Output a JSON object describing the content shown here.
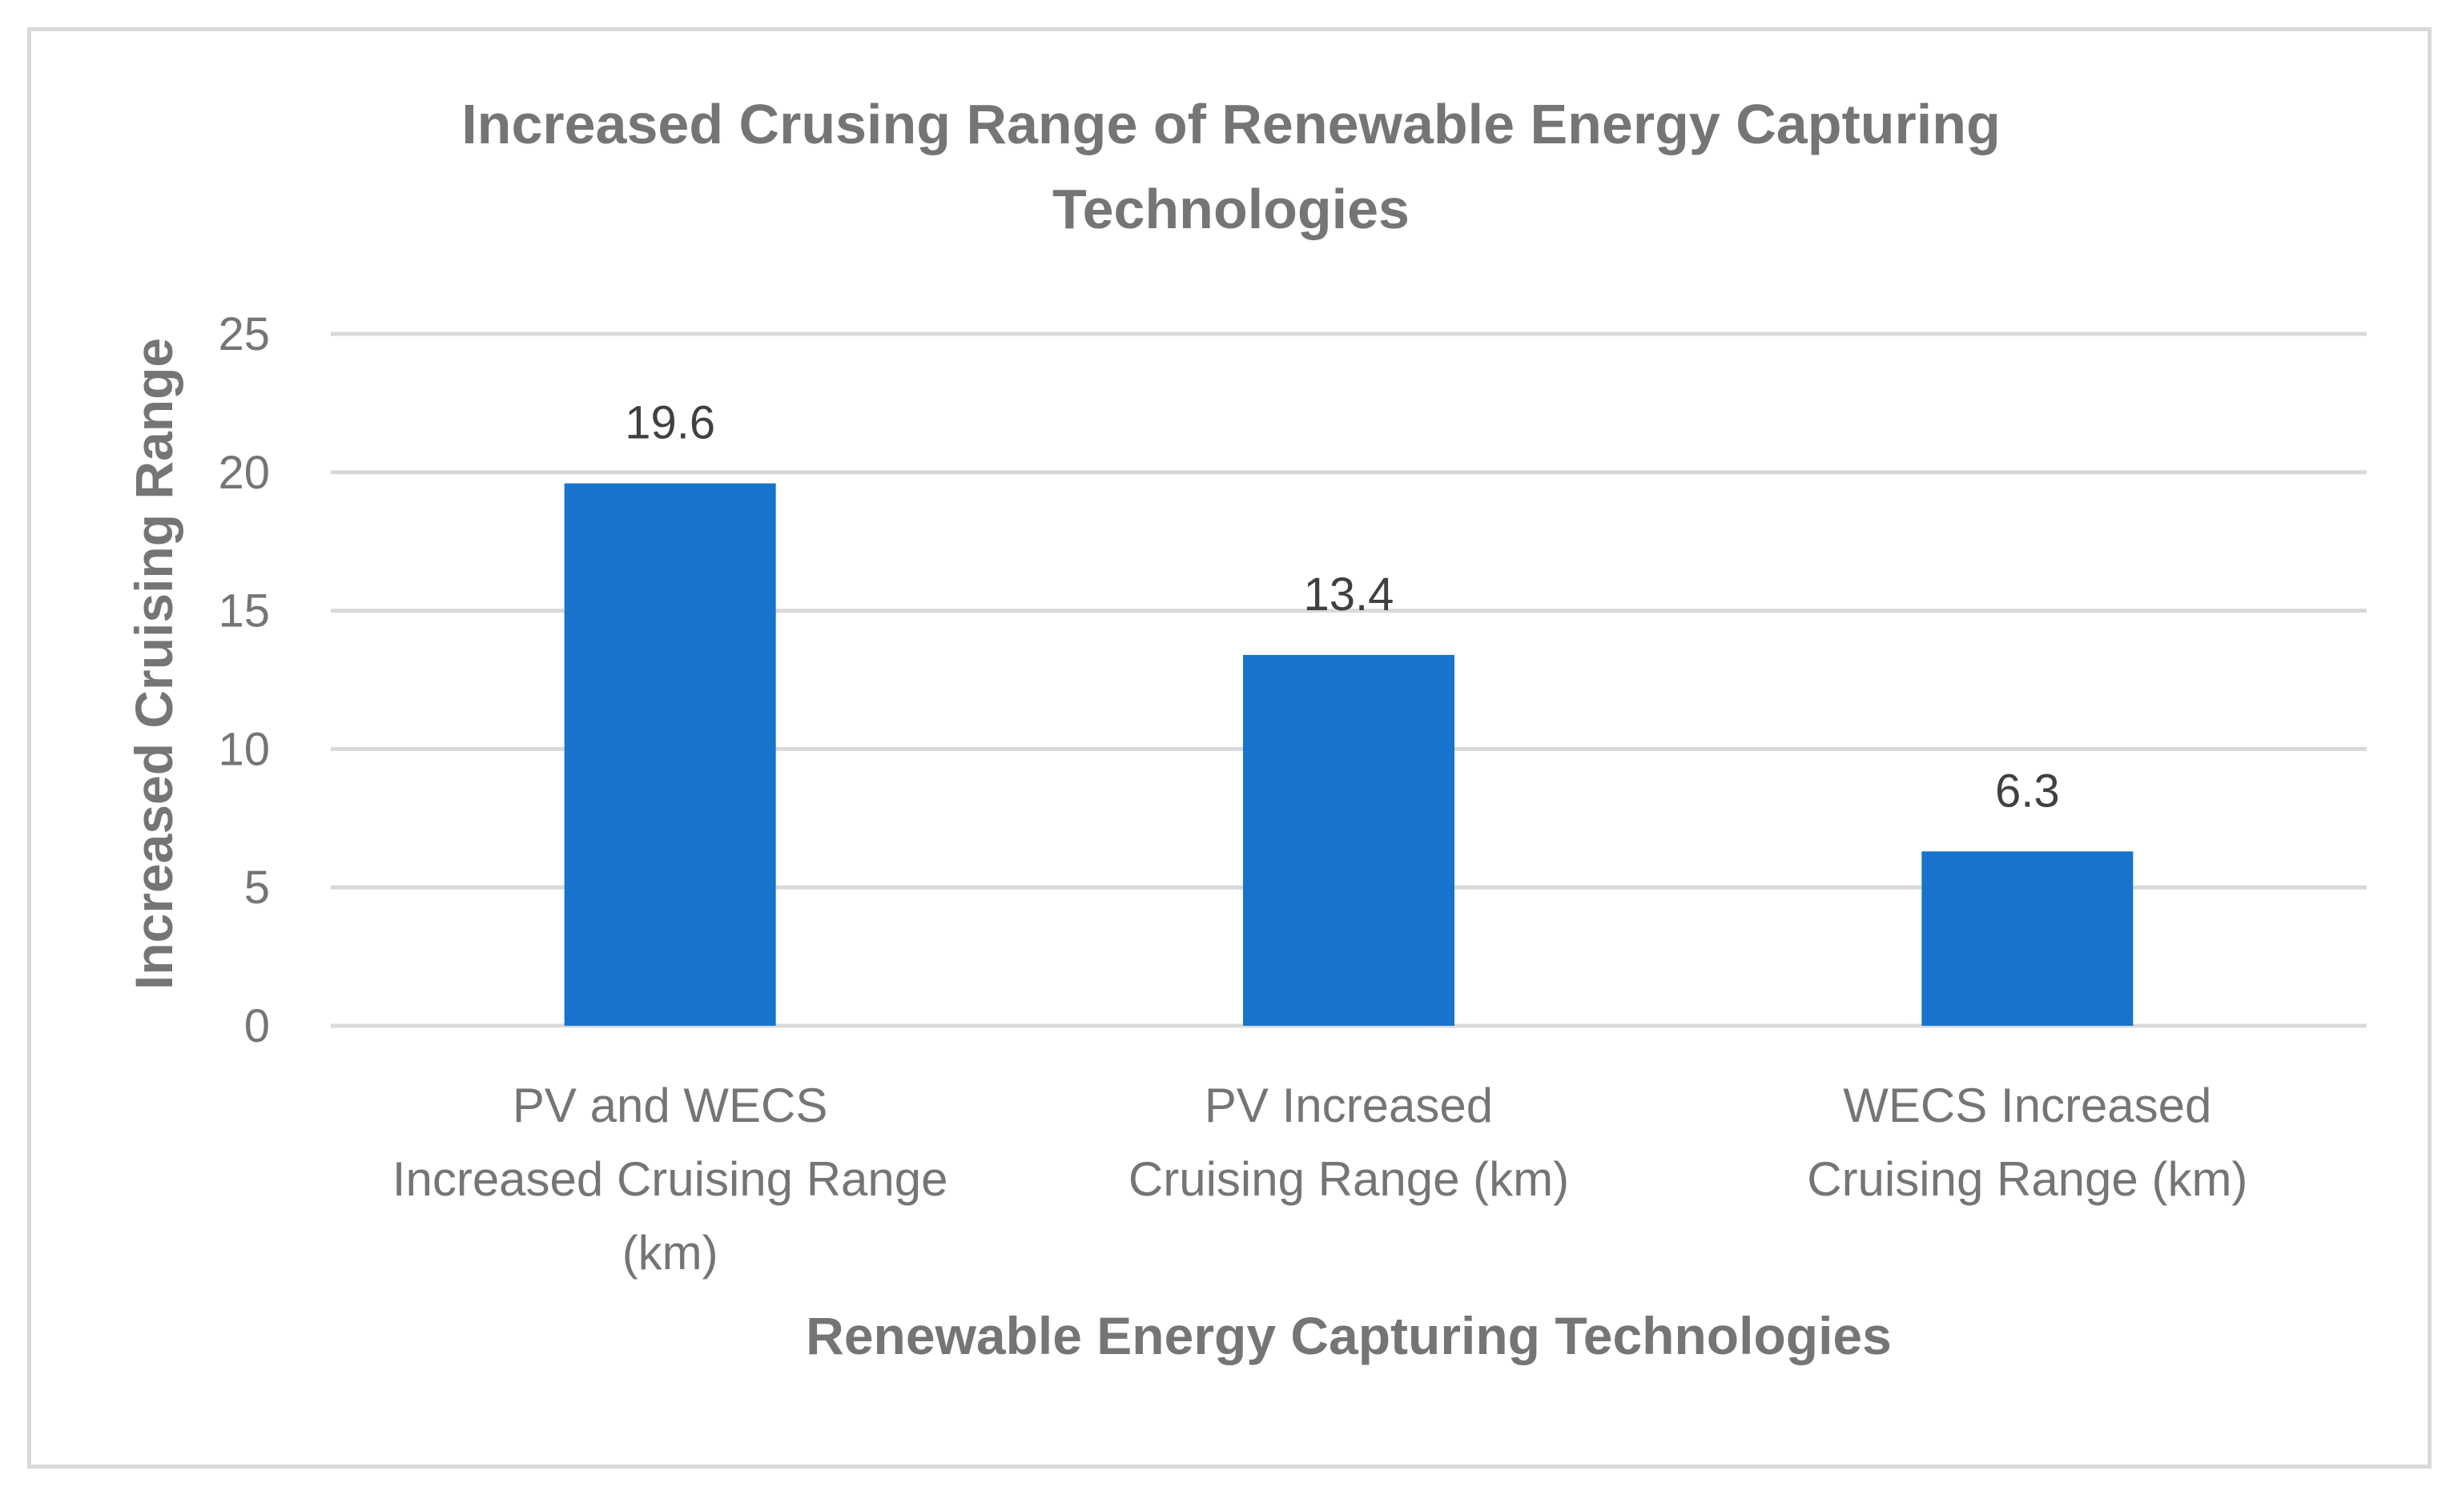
{
  "chart_data": {
    "type": "bar",
    "title_lines": [
      "Increased Crusing Range of Renewable Energy Capturing",
      "Technologies"
    ],
    "xlabel": "Renewable Energy Capturing Technologies",
    "ylabel": "Increased Cruising Range",
    "categories": [
      "PV and WECS Increased Cruising Range (km)",
      "PV Increased Cruising Range (km)",
      "WECS Increased Cruising Range (km)"
    ],
    "category_label_lines": [
      [
        "PV and WECS",
        "Increased Cruising Range",
        "(km)"
      ],
      [
        "PV Increased",
        "Cruising Range (km)"
      ],
      [
        "WECS Increased",
        "Cruising Range (km)"
      ]
    ],
    "values": [
      19.6,
      13.4,
      6.3
    ],
    "data_labels": [
      "19.6",
      "13.4",
      "6.3"
    ],
    "ylim": [
      0,
      25
    ],
    "yticks": [
      0,
      5,
      10,
      15,
      20,
      25
    ],
    "ytick_labels": [
      "0",
      "5",
      "10",
      "15",
      "20",
      "25"
    ],
    "grid": true,
    "legend": "none",
    "bar_color": "#1873CC",
    "grid_color": "#D9D9D9",
    "text_color": "#757575"
  }
}
